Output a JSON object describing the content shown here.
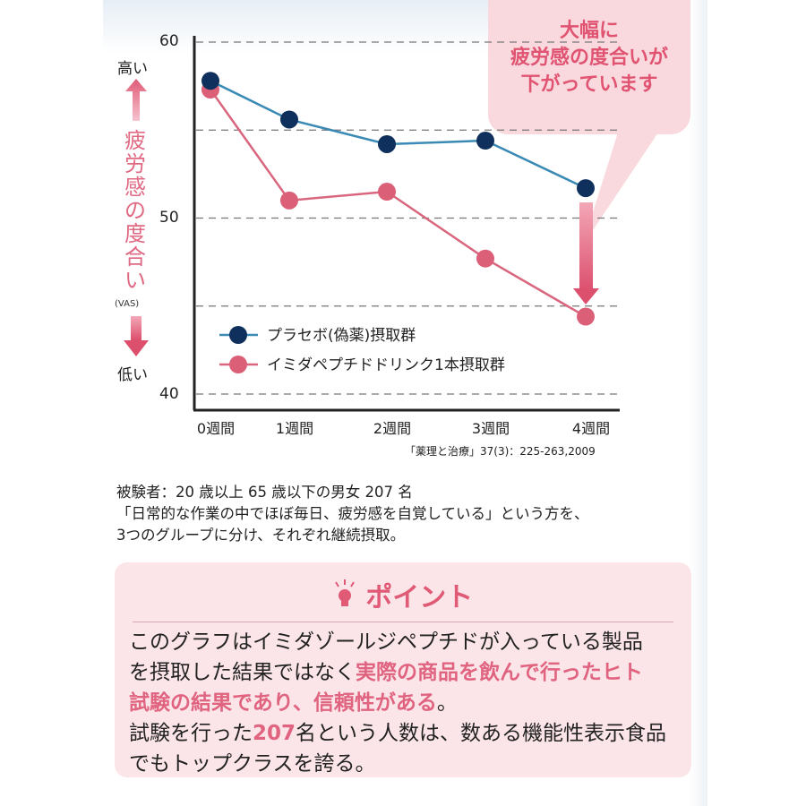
{
  "chart_data": {
    "type": "line",
    "categories": [
      "0週間",
      "1週間",
      "2週間",
      "3週間",
      "4週間"
    ],
    "series": [
      {
        "name": "プラセボ(偽薬)摂取群",
        "color": "#0f2f5c",
        "line_color": "#3a8ab5",
        "values": [
          57.8,
          55.6,
          54.2,
          54.4,
          51.7
        ]
      },
      {
        "name": "イミダペプチドドリンク1本摂取群",
        "color": "#dc5f78",
        "line_color": "#d9667e",
        "values": [
          57.3,
          51.0,
          51.5,
          47.7,
          44.4
        ]
      }
    ],
    "yticks": [
      "60",
      "50",
      "40"
    ],
    "ylim": [
      40,
      60
    ],
    "gridlines": [
      60,
      55,
      50,
      45,
      40
    ],
    "ylabel": "疲労感の度合い",
    "ylabel_unit": "(VAS)",
    "y_high": "高い",
    "y_low": "低い",
    "legend_position": "bottom-left",
    "callout": [
      "大幅に",
      "疲労感の度合いが",
      "下がっています"
    ],
    "source": "「薬理と治療」37(3)：225-263,2009"
  },
  "info": {
    "line1": "被験者：20 歳以上 65 歳以下の男女 207 名",
    "line2": "「日常的な作業の中でほぼ毎日、疲労感を自覚している」という方を、",
    "line3": " 3つのグループに分け、それぞれ継続摂取。"
  },
  "point": {
    "title": "ポイント",
    "p1a": "このグラフはイミダゾールジペプチドが入っている製品",
    "p1b": "を摂取した結果ではなく",
    "p1c": "実際の商品を飲んで行ったヒト",
    "p1d": "試験の結果であり、信頼性がある",
    "p1e": "。",
    "p2a": "試験を行った",
    "p2b": "207",
    "p2c": "名という人数は、数ある機能性表示食品",
    "p2d": "でもトップクラスを誇る。"
  }
}
